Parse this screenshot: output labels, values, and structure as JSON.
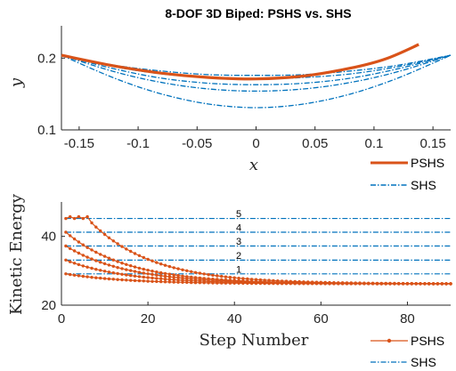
{
  "chart_data": [
    {
      "type": "line",
      "title": "8-DOF 3D Biped: PSHS vs. SHS",
      "xlabel": "x",
      "ylabel": "y",
      "xlim": [
        -0.165,
        0.165
      ],
      "ylim": [
        0.1,
        0.245
      ],
      "xticks": [
        "-0.15",
        "-0.1",
        "-0.05",
        "0",
        "0.05",
        "0.1",
        "0.15"
      ],
      "xtick_values": [
        -0.15,
        -0.1,
        -0.05,
        0,
        0.05,
        0.1,
        0.15
      ],
      "yticks": [
        "0.1",
        "0.2"
      ],
      "ytick_values": [
        0.1,
        0.2
      ],
      "colors": {
        "PSHS": "#d95319",
        "SHS": "#0072bd"
      },
      "legend": {
        "position": "bottom-right-outside",
        "entries": [
          "PSHS",
          "SHS"
        ]
      },
      "series": [
        {
          "name": "PSHS",
          "style": "solid",
          "x": [
            -0.165,
            -0.12,
            -0.08,
            -0.04,
            0,
            0.04,
            0.08,
            0.11,
            0.138
          ],
          "y": [
            0.204,
            0.189,
            0.179,
            0.173,
            0.171,
            0.175,
            0.186,
            0.199,
            0.219
          ]
        },
        {
          "name": "SHS",
          "style": "dashdot",
          "x": [
            -0.165,
            -0.12,
            -0.08,
            -0.04,
            0,
            0.04,
            0.08,
            0.12,
            0.165
          ],
          "y": [
            0.204,
            0.19,
            0.182,
            0.177,
            0.176,
            0.177,
            0.182,
            0.19,
            0.204
          ]
        },
        {
          "name": "SHS",
          "style": "dashdot",
          "x": [
            -0.165,
            -0.12,
            -0.08,
            -0.04,
            0,
            0.04,
            0.08,
            0.12,
            0.165
          ],
          "y": [
            0.204,
            0.188,
            0.178,
            0.173,
            0.171,
            0.173,
            0.178,
            0.188,
            0.204
          ]
        },
        {
          "name": "SHS",
          "style": "dashdot",
          "x": [
            -0.165,
            -0.12,
            -0.08,
            -0.04,
            0,
            0.04,
            0.08,
            0.12,
            0.165
          ],
          "y": [
            0.204,
            0.185,
            0.172,
            0.165,
            0.163,
            0.165,
            0.172,
            0.185,
            0.204
          ]
        },
        {
          "name": "SHS",
          "style": "dashdot",
          "x": [
            -0.165,
            -0.12,
            -0.08,
            -0.04,
            0,
            0.04,
            0.08,
            0.12,
            0.165
          ],
          "y": [
            0.204,
            0.181,
            0.166,
            0.157,
            0.154,
            0.157,
            0.166,
            0.181,
            0.204
          ]
        },
        {
          "name": "SHS",
          "style": "dashdot",
          "x": [
            -0.165,
            -0.12,
            -0.08,
            -0.04,
            0,
            0.04,
            0.08,
            0.12,
            0.165
          ],
          "y": [
            0.204,
            0.172,
            0.15,
            0.136,
            0.131,
            0.136,
            0.15,
            0.172,
            0.204
          ]
        }
      ]
    },
    {
      "type": "line",
      "title": "",
      "xlabel": "Step Number",
      "ylabel": "Kinetic Energy",
      "xlim": [
        0,
        90
      ],
      "ylim": [
        20,
        50
      ],
      "xticks": [
        "0",
        "20",
        "40",
        "60",
        "80"
      ],
      "xtick_values": [
        0,
        20,
        40,
        60,
        80
      ],
      "yticks": [
        "20",
        "40"
      ],
      "ytick_values": [
        20,
        40
      ],
      "colors": {
        "PSHS": "#d95319",
        "SHS": "#0072bd"
      },
      "legend": {
        "position": "bottom-right-outside",
        "entries": [
          "PSHS",
          "SHS"
        ]
      },
      "shs_levels": [
        {
          "label": "1",
          "value": 29.1
        },
        {
          "label": "2",
          "value": 33.1
        },
        {
          "label": "3",
          "value": 37.2
        },
        {
          "label": "4",
          "value": 41.2
        },
        {
          "label": "5",
          "value": 45.2
        }
      ],
      "pshs_series": [
        {
          "name": "PSHS",
          "start": 29.1,
          "final": 26.2,
          "rate": 0.07,
          "x_max": 90
        },
        {
          "name": "PSHS",
          "start": 33.1,
          "final": 26.2,
          "rate": 0.07,
          "x_max": 90
        },
        {
          "name": "PSHS",
          "start": 37.2,
          "final": 26.2,
          "rate": 0.07,
          "x_max": 90
        },
        {
          "name": "PSHS",
          "start": 41.2,
          "final": 26.2,
          "rate": 0.07,
          "x_max": 90
        },
        {
          "name": "PSHS",
          "start": 45.2,
          "final": 26.2,
          "rate": 0.07,
          "x_max": 90,
          "hold_until": 6
        }
      ]
    }
  ]
}
